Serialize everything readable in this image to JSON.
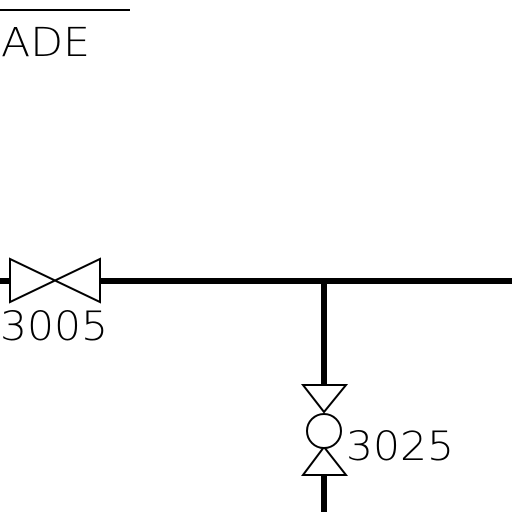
{
  "colors": {
    "line": "#000000",
    "background": "#ffffff"
  },
  "header": {
    "label": "ADE"
  },
  "valves": [
    {
      "tag": "3005",
      "symbol": "gate-valve"
    },
    {
      "tag": "3025",
      "symbol": "ball-valve"
    }
  ]
}
